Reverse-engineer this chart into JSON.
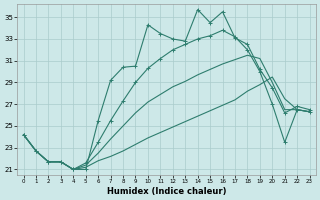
{
  "xlabel": "Humidex (Indice chaleur)",
  "bg_color": "#cde8e8",
  "line_color": "#2e7d6e",
  "grid_color": "#aacccc",
  "xlim": [
    -0.5,
    23.5
  ],
  "ylim": [
    20.5,
    36.2
  ],
  "xticks": [
    0,
    1,
    2,
    3,
    4,
    5,
    6,
    7,
    8,
    9,
    10,
    11,
    12,
    13,
    14,
    15,
    16,
    17,
    18,
    19,
    20,
    21,
    22,
    23
  ],
  "yticks": [
    21,
    23,
    25,
    27,
    29,
    31,
    33,
    35
  ],
  "lines": [
    {
      "x": [
        0,
        1,
        2,
        3,
        4,
        5,
        6,
        7,
        8,
        9,
        10,
        11,
        12,
        13,
        14,
        15,
        16,
        17,
        18,
        19,
        20,
        21,
        22,
        23
      ],
      "y": [
        24.2,
        22.7,
        21.7,
        21.7,
        21.0,
        21.0,
        25.5,
        29.2,
        30.4,
        30.5,
        34.3,
        33.5,
        33.0,
        32.8,
        35.7,
        34.5,
        35.5,
        33.1,
        32.5,
        30.2,
        28.5,
        26.2,
        26.8,
        26.5
      ],
      "marker": true,
      "lw": 0.8
    },
    {
      "x": [
        0,
        1,
        2,
        3,
        4,
        5,
        6,
        7,
        8,
        9,
        10,
        11,
        12,
        13,
        14,
        15,
        16,
        17,
        18,
        19,
        20,
        21,
        22,
        23
      ],
      "y": [
        24.2,
        22.7,
        21.7,
        21.7,
        21.0,
        21.2,
        21.8,
        22.2,
        22.7,
        23.3,
        23.9,
        24.4,
        24.9,
        25.4,
        25.9,
        26.4,
        26.9,
        27.4,
        28.2,
        28.8,
        29.5,
        27.5,
        26.5,
        26.3
      ],
      "marker": false,
      "lw": 0.8
    },
    {
      "x": [
        0,
        1,
        2,
        3,
        4,
        5,
        6,
        7,
        8,
        9,
        10,
        11,
        12,
        13,
        14,
        15,
        16,
        17,
        18,
        19,
        20,
        21,
        22,
        23
      ],
      "y": [
        24.2,
        22.7,
        21.7,
        21.7,
        21.0,
        21.4,
        22.5,
        23.8,
        25.0,
        26.2,
        27.2,
        27.9,
        28.6,
        29.1,
        29.7,
        30.2,
        30.7,
        31.1,
        31.5,
        31.2,
        29.0,
        26.5,
        26.5,
        26.3
      ],
      "marker": false,
      "lw": 0.8
    },
    {
      "x": [
        0,
        1,
        2,
        3,
        4,
        5,
        6,
        7,
        8,
        9,
        10,
        11,
        12,
        13,
        14,
        15,
        16,
        17,
        18,
        19,
        20,
        21,
        22,
        23
      ],
      "y": [
        24.2,
        22.7,
        21.7,
        21.7,
        21.0,
        21.6,
        23.5,
        25.5,
        27.3,
        29.0,
        30.3,
        31.2,
        32.0,
        32.5,
        33.0,
        33.3,
        33.8,
        33.2,
        32.0,
        30.0,
        27.0,
        23.5,
        26.5,
        26.3
      ],
      "marker": true,
      "lw": 0.8
    }
  ]
}
